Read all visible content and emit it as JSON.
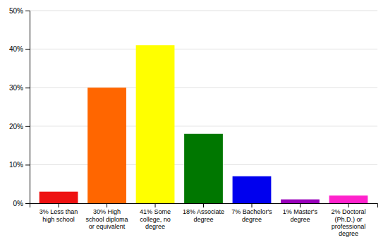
{
  "chart_data": {
    "type": "bar",
    "categories": [
      "3% Less than\nhigh school",
      "30% High\nschool diploma\nor equivalent",
      "41% Some\ncollege, no\ndegree",
      "18% Associate\ndegree",
      "7% Bachelor's\ndegree",
      "1% Master's\ndegree",
      "2% Doctoral\n(Ph.D.) or\nprofessional\ndegree"
    ],
    "values": [
      3,
      30,
      41,
      18,
      7,
      1,
      2
    ],
    "colors": [
      "#ee1111",
      "#ff6600",
      "#ffff00",
      "#007700",
      "#0000ee",
      "#9900bb",
      "#ff22cc"
    ],
    "ylim": [
      0,
      50
    ],
    "yticks": [
      {
        "value": 0,
        "label": "0%"
      },
      {
        "value": 10,
        "label": "10%"
      },
      {
        "value": 20,
        "label": "20%"
      },
      {
        "value": 30,
        "label": "30%"
      },
      {
        "value": 40,
        "label": "40%"
      },
      {
        "value": 50,
        "label": "50%"
      }
    ],
    "grid": true
  }
}
